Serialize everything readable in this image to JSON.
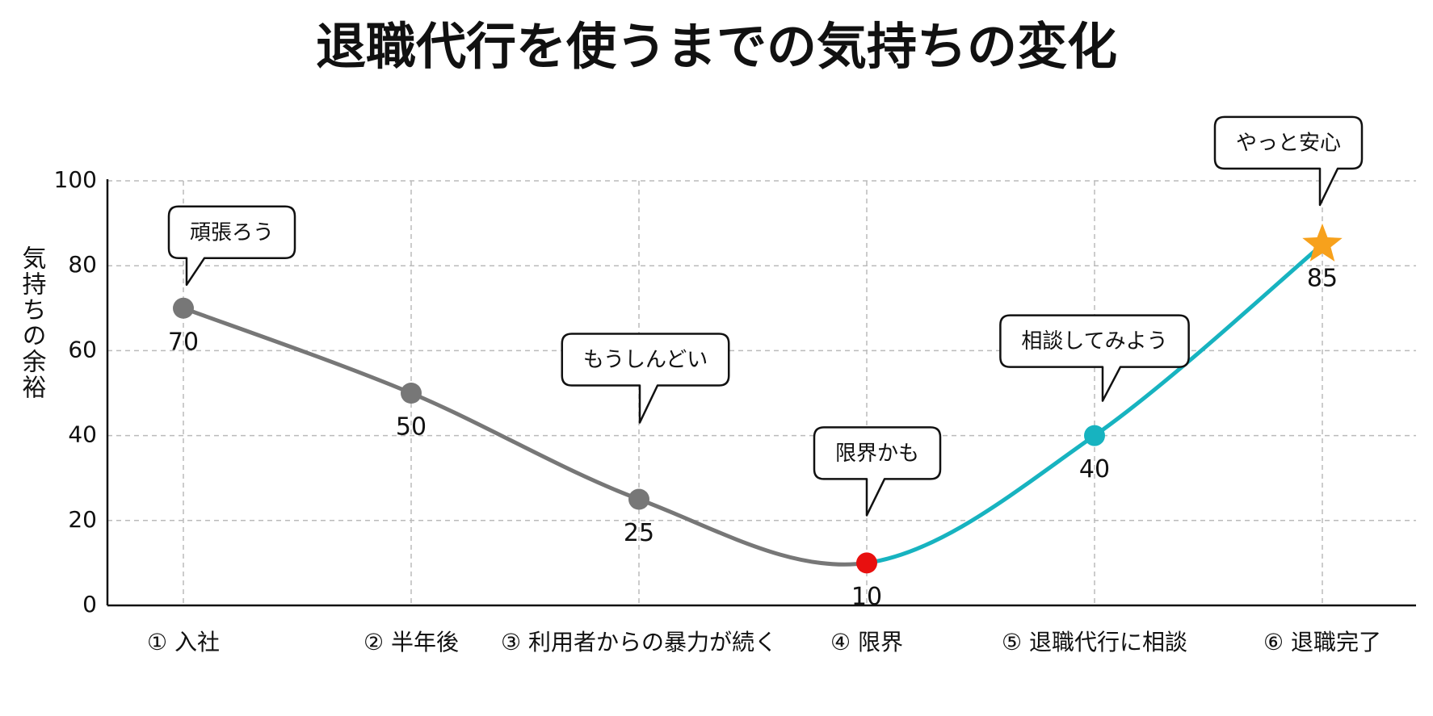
{
  "chart_data": {
    "type": "line",
    "title": "退職代行を使うまでの気持ちの変化",
    "ylabel": "気持ちの余裕",
    "categories": [
      "① 入社",
      "② 半年後",
      "③ 利用者からの暴力が続く",
      "④ 限界",
      "⑤ 退職代行に相談",
      "⑥ 退職完了"
    ],
    "series": [
      {
        "values": [
          70,
          50,
          25,
          10,
          40,
          85
        ],
        "point_colors": [
          "#777777",
          "#777777",
          "#777777",
          "#e8100f",
          "#17b3c0",
          "#f7a11c"
        ],
        "markers": [
          "circle",
          "circle",
          "circle",
          "circle",
          "circle",
          "star"
        ],
        "segment_colors": [
          "#777777",
          "#777777",
          "#777777",
          "#17b3c0",
          "#17b3c0"
        ]
      }
    ],
    "callouts": [
      "頑張ろう",
      null,
      "もうしんどい",
      "限界かも",
      "相談してみよう",
      "やっと安心"
    ],
    "ylim": [
      0,
      100
    ],
    "yticks": [
      0,
      20,
      40,
      60,
      80,
      100
    ],
    "grid": true
  }
}
